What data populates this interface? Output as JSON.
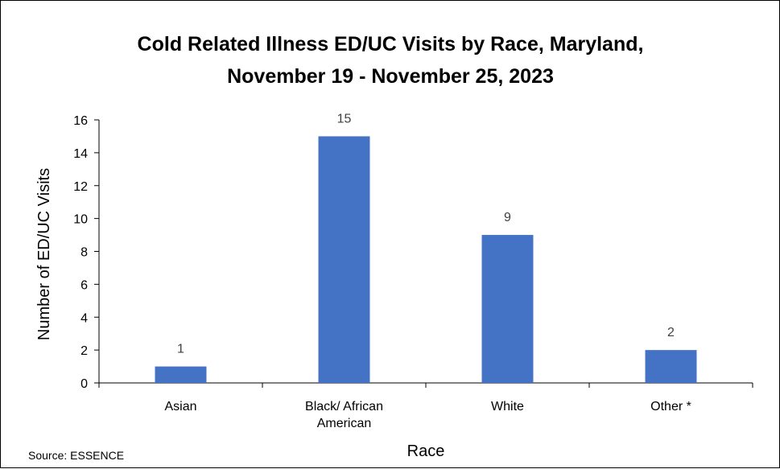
{
  "chart_data": {
    "type": "bar",
    "title_lines": [
      "Cold Related Illness ED/UC Visits by Race, Maryland,",
      "November 19 - November 25, 2023"
    ],
    "categories": [
      [
        "Asian"
      ],
      [
        "Black/ African",
        "American"
      ],
      [
        "White"
      ],
      [
        "Other *"
      ]
    ],
    "values": [
      1,
      15,
      9,
      2
    ],
    "xlabel": "Race",
    "ylabel": "Number of ED/UC Visits",
    "ylim": [
      0,
      16
    ],
    "yticks": [
      0,
      2,
      4,
      6,
      8,
      10,
      12,
      14,
      16
    ],
    "grid": false,
    "legend": "none",
    "bar_color": "#4472C4",
    "data_label_color": "#404040"
  },
  "source_note": "Source: ESSENCE"
}
